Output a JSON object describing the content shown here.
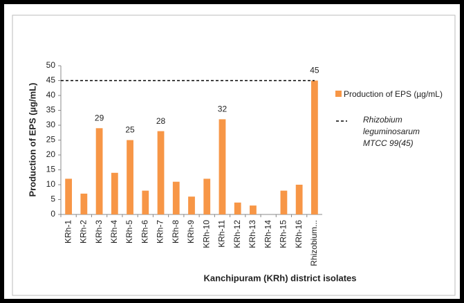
{
  "chart_data": {
    "type": "bar",
    "xlabel": "Kanchipuram (KRh) district isolates",
    "ylabel": "Production of EPS (µg/mL)",
    "categories": [
      "KRh-1",
      "KRh-2",
      "KRh-3",
      "KRh-4",
      "KRh-5",
      "KRh-6",
      "KRh-7",
      "KRh-8",
      "KRh-9",
      "KRh-10",
      "KRh-11",
      "KRh-12",
      "KRh-13",
      "KRh-14",
      "KRh-15",
      "KRh-16",
      "Rhizobium..."
    ],
    "series": [
      {
        "name": "Production of EPS (µg/mL)",
        "color": "#f79646",
        "values": [
          12,
          7,
          29,
          14,
          25,
          8,
          28,
          11,
          6,
          12,
          32,
          4,
          3,
          0,
          8,
          10,
          45
        ],
        "value_labels": [
          null,
          null,
          "29",
          null,
          "25",
          null,
          "28",
          null,
          null,
          null,
          "32",
          null,
          null,
          null,
          null,
          null,
          "45"
        ]
      }
    ],
    "reference_line": {
      "name": "Rhizobium leguminosarum MTCC 99(45)",
      "value": 45,
      "color": "#000000",
      "dashed": true
    },
    "ylim": [
      0,
      50
    ],
    "yticks": [
      0,
      5,
      10,
      15,
      20,
      25,
      30,
      35,
      40,
      45,
      50
    ],
    "legend": "right"
  }
}
